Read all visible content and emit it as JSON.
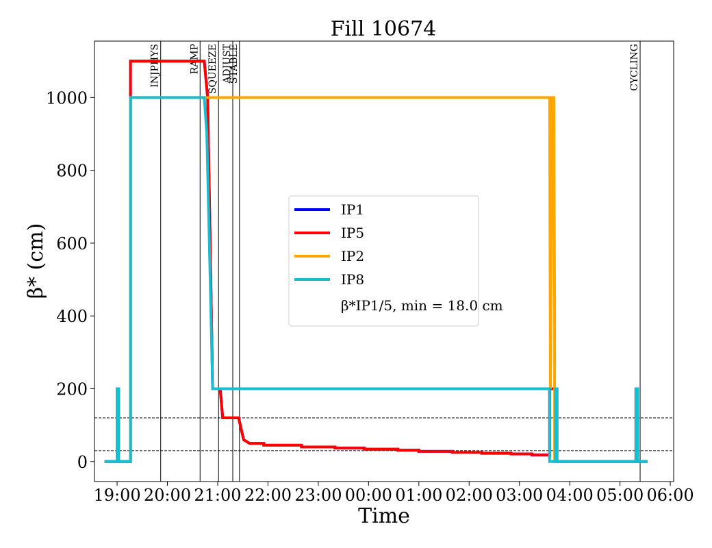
{
  "chart_data": {
    "type": "line",
    "title": "Fill 10674",
    "xlabel": "Time",
    "ylabel": "β* (cm)",
    "xlim": [
      "18:33",
      "06:04"
    ],
    "ylim": [
      -55,
      1155
    ],
    "x_ticks": [
      "19:00",
      "20:00",
      "21:00",
      "22:00",
      "23:00",
      "00:00",
      "01:00",
      "02:00",
      "03:00",
      "04:00",
      "05:00",
      "06:00"
    ],
    "y_ticks": [
      0,
      200,
      400,
      600,
      800,
      1000
    ],
    "grid": false,
    "legend_position": "center",
    "series": [
      {
        "name": "IP1",
        "color": "#0000ff",
        "points": [
          [
            "18:45",
            0
          ],
          [
            "19:00",
            0
          ],
          [
            "19:00",
            200
          ],
          [
            "19:02",
            200
          ],
          [
            "19:02",
            0
          ],
          [
            "19:16",
            0
          ],
          [
            "19:16",
            1100
          ],
          [
            "20:44",
            1100
          ],
          [
            "20:48",
            1000
          ],
          [
            "20:51",
            600
          ],
          [
            "20:54",
            200
          ],
          [
            "21:03",
            200
          ],
          [
            "21:06",
            120
          ],
          [
            "21:25",
            120
          ],
          [
            "21:31",
            60
          ],
          [
            "21:38",
            50
          ],
          [
            "21:55",
            50
          ],
          [
            "21:55",
            45
          ],
          [
            "22:40",
            45
          ],
          [
            "22:40",
            40
          ],
          [
            "23:20",
            40
          ],
          [
            "23:20",
            37
          ],
          [
            "23:55",
            37
          ],
          [
            "23:55",
            34
          ],
          [
            "00:35",
            34
          ],
          [
            "00:35",
            31
          ],
          [
            "01:00",
            31
          ],
          [
            "01:00",
            28
          ],
          [
            "01:40",
            28
          ],
          [
            "01:40",
            25
          ],
          [
            "02:15",
            25
          ],
          [
            "02:15",
            23
          ],
          [
            "02:50",
            23
          ],
          [
            "02:50",
            21
          ],
          [
            "03:15",
            21
          ],
          [
            "03:15",
            18
          ],
          [
            "03:36",
            18
          ],
          [
            "03:36",
            200
          ],
          [
            "03:44",
            200
          ],
          [
            "03:44",
            0
          ],
          [
            "05:19",
            0
          ],
          [
            "05:19",
            200
          ],
          [
            "05:21",
            200
          ],
          [
            "05:21",
            0
          ],
          [
            "05:33",
            0
          ]
        ]
      },
      {
        "name": "IP5",
        "color": "#ff0000",
        "points": [
          [
            "18:45",
            0
          ],
          [
            "19:00",
            0
          ],
          [
            "19:00",
            200
          ],
          [
            "19:02",
            200
          ],
          [
            "19:02",
            0
          ],
          [
            "19:16",
            0
          ],
          [
            "19:16",
            1100
          ],
          [
            "20:44",
            1100
          ],
          [
            "20:48",
            1000
          ],
          [
            "20:51",
            600
          ],
          [
            "20:54",
            200
          ],
          [
            "21:03",
            200
          ],
          [
            "21:06",
            120
          ],
          [
            "21:25",
            120
          ],
          [
            "21:31",
            60
          ],
          [
            "21:38",
            50
          ],
          [
            "21:55",
            50
          ],
          [
            "21:55",
            45
          ],
          [
            "22:40",
            45
          ],
          [
            "22:40",
            40
          ],
          [
            "23:20",
            40
          ],
          [
            "23:20",
            37
          ],
          [
            "23:55",
            37
          ],
          [
            "23:55",
            34
          ],
          [
            "00:35",
            34
          ],
          [
            "00:35",
            31
          ],
          [
            "01:00",
            31
          ],
          [
            "01:00",
            28
          ],
          [
            "01:40",
            28
          ],
          [
            "01:40",
            25
          ],
          [
            "02:15",
            25
          ],
          [
            "02:15",
            23
          ],
          [
            "02:50",
            23
          ],
          [
            "02:50",
            21
          ],
          [
            "03:15",
            21
          ],
          [
            "03:15",
            18
          ],
          [
            "03:36",
            18
          ],
          [
            "03:36",
            200
          ],
          [
            "03:44",
            200
          ],
          [
            "03:44",
            0
          ],
          [
            "05:19",
            0
          ],
          [
            "05:19",
            200
          ],
          [
            "05:21",
            200
          ],
          [
            "05:21",
            0
          ],
          [
            "05:33",
            0
          ]
        ]
      },
      {
        "name": "IP2",
        "color": "#ffa500",
        "points": [
          [
            "18:45",
            0
          ],
          [
            "19:00",
            0
          ],
          [
            "19:00",
            200
          ],
          [
            "19:02",
            200
          ],
          [
            "19:02",
            0
          ],
          [
            "19:16",
            0
          ],
          [
            "19:16",
            1000
          ],
          [
            "03:36",
            1000
          ],
          [
            "03:37",
            200
          ],
          [
            "03:39",
            1000
          ],
          [
            "03:41",
            1000
          ],
          [
            "03:42",
            430
          ],
          [
            "03:42",
            0
          ],
          [
            "05:19",
            0
          ],
          [
            "05:19",
            200
          ],
          [
            "05:21",
            200
          ],
          [
            "05:21",
            0
          ],
          [
            "05:33",
            0
          ]
        ]
      },
      {
        "name": "IP8",
        "color": "#17becf",
        "points": [
          [
            "18:45",
            0
          ],
          [
            "19:00",
            0
          ],
          [
            "19:00",
            200
          ],
          [
            "19:02",
            200
          ],
          [
            "19:02",
            0
          ],
          [
            "19:16",
            0
          ],
          [
            "19:16",
            1000
          ],
          [
            "20:44",
            1000
          ],
          [
            "20:47",
            900
          ],
          [
            "20:51",
            500
          ],
          [
            "20:54",
            200
          ],
          [
            "03:36",
            200
          ],
          [
            "03:36",
            0
          ],
          [
            "03:43",
            0
          ],
          [
            "03:43",
            200
          ],
          [
            "03:45",
            200
          ],
          [
            "03:45",
            0
          ],
          [
            "05:19",
            0
          ],
          [
            "05:19",
            200
          ],
          [
            "05:21",
            200
          ],
          [
            "05:21",
            0
          ],
          [
            "05:33",
            0
          ]
        ]
      }
    ],
    "phase_markers": [
      {
        "label": "INJPHYS",
        "time": "19:52"
      },
      {
        "label": "RAMP",
        "time": "20:39"
      },
      {
        "label": "SQUEEZE",
        "time": "21:01"
      },
      {
        "label": "ADJUST",
        "time": "21:18"
      },
      {
        "label": "STABLE",
        "time": "21:26"
      },
      {
        "label": "CYCLING",
        "time": "05:24"
      }
    ],
    "reference_lines": [
      120,
      30
    ],
    "legend_note": "β*IP1/5, min = 18.0 cm"
  }
}
